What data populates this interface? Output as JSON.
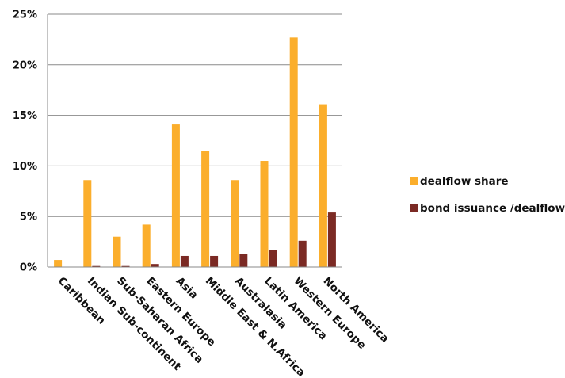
{
  "chart_data": {
    "type": "bar",
    "title": "",
    "xlabel": "",
    "ylabel": "",
    "ylim": [
      0,
      25
    ],
    "yticks": [
      "0%",
      "5%",
      "10%",
      "15%",
      "20%",
      "25%"
    ],
    "ytick_values": [
      0,
      5,
      10,
      15,
      20,
      25
    ],
    "grid": "horizontal",
    "legend_position": "right",
    "categories": [
      "Caribbean",
      "Indian Sub-continent",
      "Sub-Saharan Africa",
      "Eastern Europe",
      "Asia",
      "Middle East & N.Africa",
      "Australasia",
      "Latin America",
      "Western Europe",
      "North America"
    ],
    "series": [
      {
        "name": "dealflow share",
        "color": "#FBAE2C",
        "values": [
          0.7,
          8.6,
          3.0,
          4.2,
          14.1,
          11.5,
          8.6,
          10.5,
          22.7,
          16.1
        ]
      },
      {
        "name": "bond issuance /dealflow",
        "color": "#7B2A24",
        "values": [
          0.0,
          0.1,
          0.1,
          0.3,
          1.1,
          1.1,
          1.3,
          1.7,
          2.6,
          5.4
        ]
      }
    ]
  }
}
